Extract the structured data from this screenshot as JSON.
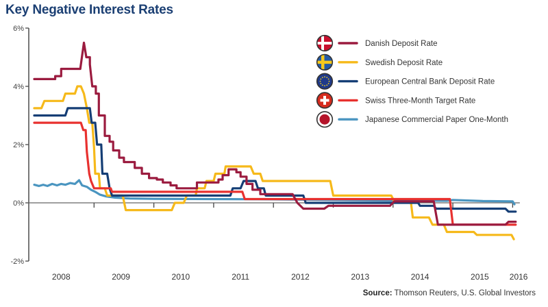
{
  "title": "Key Negative Interest Rates",
  "source": {
    "prefix": "Source:",
    "text": " Thomson Reuters, U.S. Global Investors"
  },
  "chart_data": {
    "type": "line",
    "title": "Key Negative Interest Rates",
    "xlabel": "",
    "ylabel": "",
    "x_unit": "year",
    "xlim": [
      2007.95,
      2016.1
    ],
    "ylim": [
      -2,
      6
    ],
    "y_ticks": [
      -2,
      0,
      2,
      4,
      6
    ],
    "y_tick_labels": [
      "-2%",
      "0%",
      "2%",
      "4%",
      "6%"
    ],
    "x_tick_labels": [
      "2008",
      "2009",
      "2010",
      "2011",
      "2012",
      "2013",
      "2014",
      "2015",
      "2016"
    ],
    "grid": false,
    "legend_position": "top-right",
    "line_style": "step",
    "series": [
      {
        "name": "Danish Deposit Rate",
        "color": "#9b1b3f",
        "flag": "denmark",
        "points": [
          [
            2008.0,
            4.25
          ],
          [
            2008.35,
            4.25
          ],
          [
            2008.35,
            4.35
          ],
          [
            2008.45,
            4.35
          ],
          [
            2008.45,
            4.6
          ],
          [
            2008.77,
            4.6
          ],
          [
            2008.83,
            5.5
          ],
          [
            2008.87,
            5.0
          ],
          [
            2008.93,
            5.0
          ],
          [
            2008.93,
            4.75
          ],
          [
            2008.97,
            4.0
          ],
          [
            2009.03,
            4.0
          ],
          [
            2009.03,
            3.75
          ],
          [
            2009.08,
            3.75
          ],
          [
            2009.08,
            3.0
          ],
          [
            2009.18,
            3.0
          ],
          [
            2009.18,
            2.3
          ],
          [
            2009.26,
            2.3
          ],
          [
            2009.26,
            2.1
          ],
          [
            2009.32,
            2.1
          ],
          [
            2009.32,
            1.8
          ],
          [
            2009.42,
            1.8
          ],
          [
            2009.42,
            1.55
          ],
          [
            2009.5,
            1.55
          ],
          [
            2009.5,
            1.4
          ],
          [
            2009.68,
            1.4
          ],
          [
            2009.68,
            1.2
          ],
          [
            2009.8,
            1.2
          ],
          [
            2009.8,
            1.0
          ],
          [
            2009.92,
            1.0
          ],
          [
            2009.92,
            0.85
          ],
          [
            2010.05,
            0.85
          ],
          [
            2010.05,
            0.8
          ],
          [
            2010.15,
            0.8
          ],
          [
            2010.15,
            0.7
          ],
          [
            2010.28,
            0.7
          ],
          [
            2010.28,
            0.6
          ],
          [
            2010.38,
            0.6
          ],
          [
            2010.38,
            0.5
          ],
          [
            2010.72,
            0.5
          ],
          [
            2010.72,
            0.7
          ],
          [
            2011.08,
            0.7
          ],
          [
            2011.08,
            0.8
          ],
          [
            2011.15,
            0.8
          ],
          [
            2011.15,
            0.95
          ],
          [
            2011.25,
            0.95
          ],
          [
            2011.25,
            1.15
          ],
          [
            2011.38,
            1.15
          ],
          [
            2011.38,
            1.05
          ],
          [
            2011.45,
            1.05
          ],
          [
            2011.45,
            0.9
          ],
          [
            2011.55,
            0.9
          ],
          [
            2011.55,
            0.65
          ],
          [
            2011.65,
            0.65
          ],
          [
            2011.65,
            0.45
          ],
          [
            2011.78,
            0.45
          ],
          [
            2011.78,
            0.3
          ],
          [
            2012.32,
            0.3
          ],
          [
            2012.4,
            0.0
          ],
          [
            2012.5,
            -0.2
          ],
          [
            2012.85,
            -0.2
          ],
          [
            2012.92,
            -0.1
          ],
          [
            2013.95,
            -0.1
          ],
          [
            2014.02,
            0.05
          ],
          [
            2014.68,
            0.05
          ],
          [
            2014.75,
            -0.75
          ],
          [
            2015.88,
            -0.75
          ],
          [
            2015.93,
            -0.65
          ],
          [
            2016.05,
            -0.65
          ]
        ]
      },
      {
        "name": "Swedish Deposit Rate",
        "color": "#f6b91a",
        "flag": "sweden",
        "points": [
          [
            2008.0,
            3.25
          ],
          [
            2008.12,
            3.25
          ],
          [
            2008.17,
            3.5
          ],
          [
            2008.48,
            3.5
          ],
          [
            2008.52,
            3.75
          ],
          [
            2008.68,
            3.75
          ],
          [
            2008.72,
            4.0
          ],
          [
            2008.78,
            4.0
          ],
          [
            2008.83,
            3.75
          ],
          [
            2008.88,
            3.25
          ],
          [
            2008.92,
            2.75
          ],
          [
            2008.97,
            2.75
          ],
          [
            2009.0,
            1.9
          ],
          [
            2009.02,
            1.0
          ],
          [
            2009.08,
            1.0
          ],
          [
            2009.1,
            0.5
          ],
          [
            2009.18,
            0.5
          ],
          [
            2009.22,
            0.25
          ],
          [
            2009.48,
            0.25
          ],
          [
            2009.53,
            -0.25
          ],
          [
            2010.3,
            -0.25
          ],
          [
            2010.35,
            0.0
          ],
          [
            2010.5,
            0.0
          ],
          [
            2010.55,
            0.25
          ],
          [
            2010.7,
            0.25
          ],
          [
            2010.72,
            0.5
          ],
          [
            2010.85,
            0.5
          ],
          [
            2010.88,
            0.75
          ],
          [
            2011.0,
            0.75
          ],
          [
            2011.03,
            1.0
          ],
          [
            2011.18,
            1.0
          ],
          [
            2011.2,
            1.25
          ],
          [
            2011.62,
            1.25
          ],
          [
            2011.67,
            1.0
          ],
          [
            2011.78,
            1.0
          ],
          [
            2011.82,
            0.75
          ],
          [
            2012.95,
            0.75
          ],
          [
            2013.0,
            0.25
          ],
          [
            2013.97,
            0.25
          ],
          [
            2014.02,
            0.05
          ],
          [
            2014.3,
            0.0
          ],
          [
            2014.33,
            -0.5
          ],
          [
            2014.6,
            -0.5
          ],
          [
            2014.66,
            -0.75
          ],
          [
            2014.85,
            -0.75
          ],
          [
            2014.9,
            -1.0
          ],
          [
            2015.35,
            -1.0
          ],
          [
            2015.4,
            -1.1
          ],
          [
            2015.98,
            -1.1
          ],
          [
            2016.02,
            -1.25
          ]
        ]
      },
      {
        "name": "European Central Bank Deposit Rate",
        "color": "#153e75",
        "flag": "eu",
        "points": [
          [
            2008.0,
            3.0
          ],
          [
            2008.52,
            3.0
          ],
          [
            2008.56,
            3.25
          ],
          [
            2008.93,
            3.25
          ],
          [
            2008.96,
            2.75
          ],
          [
            2009.02,
            2.75
          ],
          [
            2009.05,
            2.0
          ],
          [
            2009.12,
            2.0
          ],
          [
            2009.14,
            1.0
          ],
          [
            2009.22,
            1.0
          ],
          [
            2009.26,
            0.5
          ],
          [
            2009.3,
            0.25
          ],
          [
            2011.28,
            0.25
          ],
          [
            2011.32,
            0.5
          ],
          [
            2011.45,
            0.5
          ],
          [
            2011.5,
            0.75
          ],
          [
            2011.7,
            0.75
          ],
          [
            2011.74,
            0.5
          ],
          [
            2011.84,
            0.5
          ],
          [
            2011.87,
            0.25
          ],
          [
            2012.5,
            0.25
          ],
          [
            2012.54,
            0.0
          ],
          [
            2014.42,
            0.0
          ],
          [
            2014.45,
            -0.1
          ],
          [
            2014.68,
            -0.1
          ],
          [
            2014.72,
            -0.2
          ],
          [
            2015.88,
            -0.2
          ],
          [
            2015.93,
            -0.3
          ],
          [
            2016.05,
            -0.3
          ]
        ]
      },
      {
        "name": "Swiss Three-Month Target Rate",
        "color": "#e8312f",
        "flag": "switzerland",
        "points": [
          [
            2008.0,
            2.75
          ],
          [
            2008.78,
            2.75
          ],
          [
            2008.82,
            2.5
          ],
          [
            2008.86,
            2.5
          ],
          [
            2008.88,
            1.75
          ],
          [
            2008.92,
            1.0
          ],
          [
            2008.95,
            0.75
          ],
          [
            2009.0,
            0.5
          ],
          [
            2009.28,
            0.5
          ],
          [
            2009.3,
            0.38
          ],
          [
            2011.48,
            0.38
          ],
          [
            2011.52,
            0.13
          ],
          [
            2014.95,
            0.13
          ],
          [
            2015.0,
            -0.75
          ],
          [
            2016.05,
            -0.75
          ]
        ]
      },
      {
        "name": "Japanese Commercial Paper One-Month",
        "color": "#4a95c0",
        "flag": "japan",
        "points": [
          [
            2008.0,
            0.62
          ],
          [
            2008.08,
            0.58
          ],
          [
            2008.15,
            0.62
          ],
          [
            2008.22,
            0.58
          ],
          [
            2008.3,
            0.65
          ],
          [
            2008.38,
            0.6
          ],
          [
            2008.45,
            0.65
          ],
          [
            2008.52,
            0.62
          ],
          [
            2008.6,
            0.68
          ],
          [
            2008.68,
            0.65
          ],
          [
            2008.75,
            0.78
          ],
          [
            2008.8,
            0.6
          ],
          [
            2008.88,
            0.55
          ],
          [
            2008.95,
            0.45
          ],
          [
            2009.02,
            0.38
          ],
          [
            2009.1,
            0.28
          ],
          [
            2009.2,
            0.22
          ],
          [
            2009.35,
            0.18
          ],
          [
            2009.6,
            0.15
          ],
          [
            2010.0,
            0.14
          ],
          [
            2011.0,
            0.13
          ],
          [
            2012.0,
            0.12
          ],
          [
            2013.0,
            0.1
          ],
          [
            2014.0,
            0.08
          ],
          [
            2014.9,
            0.07
          ],
          [
            2015.0,
            0.1
          ],
          [
            2015.5,
            0.06
          ],
          [
            2016.0,
            0.05
          ],
          [
            2016.03,
            -0.05
          ]
        ]
      }
    ]
  }
}
